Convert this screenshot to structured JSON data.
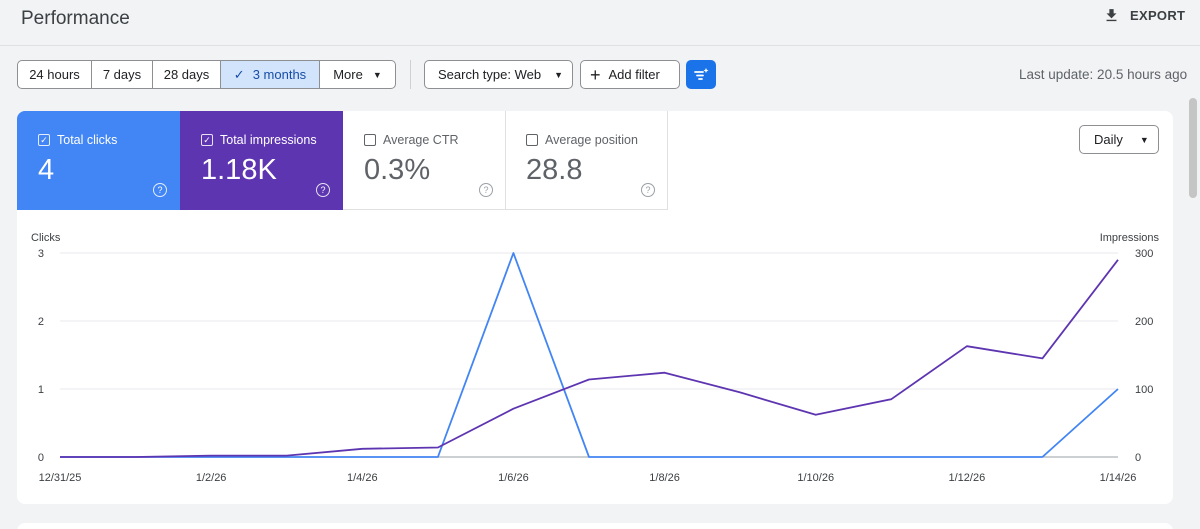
{
  "header": {
    "title": "Performance",
    "export_label": "EXPORT"
  },
  "toolbar": {
    "ranges": [
      {
        "label": "24 hours"
      },
      {
        "label": "7 days"
      },
      {
        "label": "28 days"
      },
      {
        "label": "3 months",
        "selected": true
      },
      {
        "label": "More"
      }
    ],
    "search_type": "Search type: Web",
    "add_filter": "Add filter",
    "last_update": "Last update: 20.5 hours ago"
  },
  "metrics": [
    {
      "label": "Total clicks",
      "value": "4",
      "checked": true,
      "color": "#4285f4"
    },
    {
      "label": "Total impressions",
      "value": "1.18K",
      "checked": true,
      "color": "#5e35b1"
    },
    {
      "label": "Average CTR",
      "value": "0.3%",
      "checked": false
    },
    {
      "label": "Average position",
      "value": "28.8",
      "checked": false
    }
  ],
  "granularity": "Daily",
  "chart_data": {
    "type": "line",
    "title": "",
    "left_axis_label": "Clicks",
    "right_axis_label": "Impressions",
    "left_ticks": [
      "0",
      "1",
      "2",
      "3"
    ],
    "right_ticks": [
      "0",
      "100",
      "200",
      "300"
    ],
    "ylim_left": [
      0,
      3
    ],
    "ylim_right": [
      0,
      300
    ],
    "x_tick_labels": [
      "12/31/25",
      "1/2/26",
      "1/4/26",
      "1/6/26",
      "1/8/26",
      "1/10/26",
      "1/12/26",
      "1/14/26"
    ],
    "x_dates": [
      "12/31/25",
      "1/1/26",
      "1/2/26",
      "1/3/26",
      "1/4/26",
      "1/5/26",
      "1/6/26",
      "1/7/26",
      "1/8/26",
      "1/9/26",
      "1/10/26",
      "1/11/26",
      "1/12/26",
      "1/13/26",
      "1/14/26"
    ],
    "series": [
      {
        "name": "Total clicks",
        "axis": "left",
        "color": "#4285f4",
        "values": [
          0,
          0,
          0,
          0,
          0,
          0,
          3,
          0,
          0,
          0,
          0,
          0,
          0,
          0,
          1
        ]
      },
      {
        "name": "Total impressions",
        "axis": "right",
        "color": "#5e35b1",
        "values": [
          0,
          0,
          2,
          2,
          12,
          14,
          71,
          114,
          124,
          95,
          62,
          85,
          163,
          145,
          290
        ]
      }
    ]
  }
}
